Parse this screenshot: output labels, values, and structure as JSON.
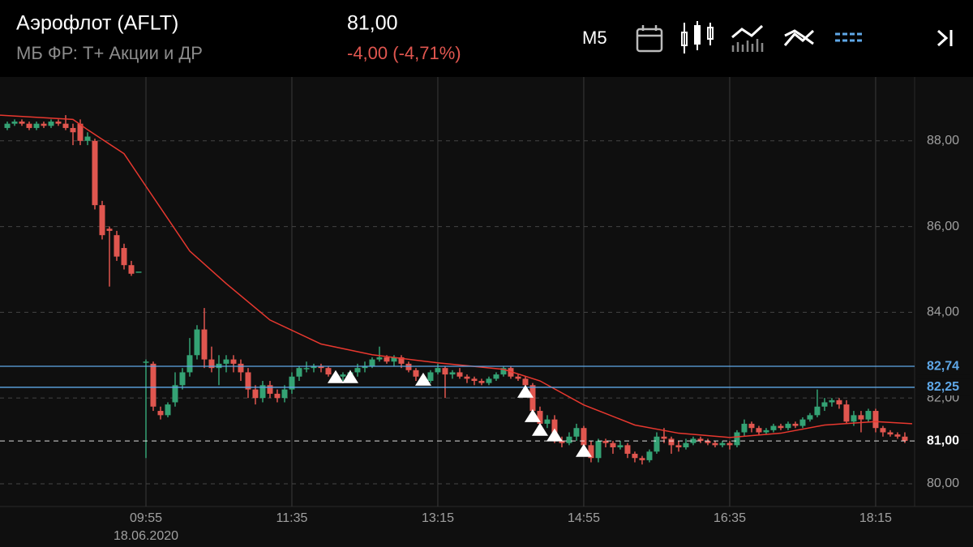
{
  "header": {
    "title": "Аэрофлот (AFLT)",
    "market": "МБ ФР: Т+ Акции и ДР",
    "price": "81,00",
    "change": "-4,00 (-4,71%)",
    "timeframe": "M5"
  },
  "chart_data": {
    "type": "candlestick",
    "up_color": "#34a274",
    "down_color": "#e0564f",
    "x": [
      500,
      505,
      510,
      515,
      520,
      525,
      530,
      535,
      540,
      545,
      550,
      555,
      560,
      565,
      570,
      575,
      580,
      585,
      590,
      595,
      600,
      605,
      610,
      615,
      620,
      625,
      630,
      635,
      640,
      645,
      650,
      655,
      660,
      665,
      670,
      675,
      680,
      685,
      690,
      695,
      700,
      705,
      710,
      715,
      720,
      725,
      730,
      735,
      740,
      745,
      750,
      755,
      760,
      765,
      770,
      775,
      780,
      785,
      790,
      795,
      800,
      805,
      810,
      815,
      820,
      825,
      830,
      835,
      840,
      845,
      850,
      855,
      860,
      865,
      870,
      875,
      880,
      885,
      890,
      895,
      900,
      905,
      910,
      915,
      920,
      925,
      930,
      935,
      940,
      945,
      950,
      955,
      960,
      965,
      970,
      975,
      980,
      985,
      990,
      995,
      1000,
      1005,
      1010,
      1015,
      1020,
      1025,
      1030,
      1035,
      1040,
      1045,
      1050,
      1055,
      1060,
      1065,
      1070,
      1075,
      1080,
      1085,
      1090,
      1095,
      1100,
      1105,
      1110,
      1115
    ],
    "open": [
      88.3,
      88.4,
      88.45,
      88.4,
      88.3,
      88.4,
      88.35,
      88.45,
      88.4,
      88.3,
      88.4,
      88.0,
      88.0,
      86.5,
      85.95,
      85.8,
      85.5,
      85.1,
      84.95,
      82.85,
      82.8,
      81.7,
      81.6,
      81.9,
      82.3,
      82.6,
      83.0,
      83.6,
      82.9,
      82.7,
      82.8,
      82.9,
      82.8,
      82.6,
      82.2,
      82.0,
      82.3,
      82.1,
      82.0,
      82.2,
      82.5,
      82.7,
      82.7,
      82.75,
      82.7,
      82.55,
      82.5,
      82.55,
      82.6,
      82.7,
      82.75,
      82.9,
      82.95,
      82.85,
      82.95,
      82.8,
      82.65,
      82.5,
      82.4,
      82.6,
      82.7,
      82.55,
      82.6,
      82.5,
      82.45,
      82.4,
      82.35,
      82.45,
      82.55,
      82.7,
      82.5,
      82.45,
      82.3,
      81.7,
      81.4,
      81.5,
      81.0,
      80.95,
      81.1,
      81.3,
      80.9,
      80.6,
      81.0,
      80.95,
      80.85,
      80.9,
      80.7,
      80.6,
      80.55,
      80.75,
      81.1,
      81.05,
      80.9,
      80.85,
      80.95,
      81.05,
      81.0,
      80.95,
      80.9,
      80.95,
      80.9,
      81.2,
      81.4,
      81.3,
      81.2,
      81.25,
      81.35,
      81.3,
      81.4,
      81.35,
      81.5,
      81.6,
      81.8,
      81.9,
      81.95,
      81.85,
      81.45,
      81.6,
      81.5,
      81.7,
      81.3,
      81.2,
      81.15,
      81.1
    ],
    "high": [
      88.45,
      88.5,
      88.5,
      88.45,
      88.45,
      88.45,
      88.5,
      88.5,
      88.6,
      88.4,
      88.5,
      88.2,
      88.05,
      86.6,
      86.0,
      85.9,
      85.6,
      85.2,
      84.95,
      82.9,
      82.85,
      81.8,
      81.9,
      82.6,
      82.7,
      83.4,
      83.7,
      84.1,
      83.2,
      83.0,
      83.0,
      83.0,
      82.9,
      82.7,
      82.3,
      82.4,
      82.4,
      82.2,
      82.3,
      82.6,
      82.75,
      82.85,
      82.8,
      82.8,
      82.75,
      82.6,
      82.6,
      82.65,
      82.8,
      82.85,
      82.95,
      83.2,
      83.0,
      83.0,
      83.0,
      82.85,
      82.7,
      82.55,
      82.65,
      82.8,
      82.75,
      82.65,
      82.7,
      82.55,
      82.5,
      82.45,
      82.5,
      82.6,
      82.75,
      82.75,
      82.55,
      82.5,
      82.35,
      81.8,
      81.6,
      81.6,
      81.1,
      81.2,
      81.4,
      81.35,
      81.0,
      81.05,
      81.05,
      81.0,
      81.0,
      80.95,
      80.75,
      80.65,
      80.8,
      81.2,
      81.3,
      81.1,
      81.0,
      81.05,
      81.1,
      81.1,
      81.05,
      81.0,
      81.0,
      81.0,
      81.25,
      81.5,
      81.45,
      81.35,
      81.3,
      81.4,
      81.4,
      81.45,
      81.45,
      81.55,
      81.65,
      82.2,
      82.0,
      82.0,
      82.0,
      81.95,
      81.7,
      81.7,
      81.75,
      81.75,
      81.35,
      81.25,
      81.2,
      81.2
    ],
    "low": [
      88.25,
      88.35,
      88.35,
      88.25,
      88.25,
      88.3,
      88.3,
      88.35,
      88.25,
      87.9,
      87.9,
      87.9,
      86.4,
      85.7,
      84.6,
      85.2,
      85.0,
      84.85,
      84.95,
      80.6,
      81.7,
      81.5,
      81.55,
      81.8,
      82.2,
      82.5,
      82.9,
      82.7,
      82.6,
      82.3,
      82.6,
      82.6,
      82.4,
      82.0,
      81.85,
      81.9,
      82.0,
      81.9,
      81.9,
      82.1,
      82.4,
      82.6,
      82.6,
      82.6,
      82.5,
      82.45,
      82.4,
      82.5,
      82.5,
      82.6,
      82.7,
      82.85,
      82.8,
      82.75,
      82.7,
      82.6,
      82.4,
      82.3,
      82.35,
      82.55,
      82.0,
      82.45,
      82.45,
      82.35,
      82.3,
      82.3,
      82.3,
      82.4,
      82.5,
      82.45,
      82.4,
      82.2,
      81.6,
      81.3,
      81.3,
      80.95,
      80.85,
      80.9,
      81.0,
      80.8,
      80.5,
      80.5,
      80.85,
      80.7,
      80.8,
      80.6,
      80.5,
      80.45,
      80.5,
      80.7,
      80.95,
      80.7,
      80.75,
      80.8,
      80.9,
      80.95,
      80.9,
      80.85,
      80.85,
      80.8,
      80.85,
      81.1,
      81.2,
      81.15,
      81.15,
      81.2,
      81.25,
      81.25,
      81.3,
      81.3,
      81.45,
      81.55,
      81.7,
      81.8,
      81.75,
      81.4,
      81.35,
      81.2,
      81.45,
      81.2,
      81.1,
      81.1,
      81.05,
      80.95
    ],
    "close": [
      88.4,
      88.45,
      88.4,
      88.3,
      88.4,
      88.35,
      88.45,
      88.4,
      88.3,
      88.2,
      88.0,
      88.1,
      86.5,
      85.8,
      85.9,
      85.3,
      85.1,
      84.9,
      84.95,
      82.85,
      81.8,
      81.6,
      81.85,
      82.3,
      82.6,
      83.0,
      83.6,
      82.9,
      82.7,
      82.8,
      82.9,
      82.8,
      82.6,
      82.2,
      82.0,
      82.3,
      82.1,
      82.0,
      82.2,
      82.5,
      82.7,
      82.7,
      82.75,
      82.7,
      82.55,
      82.5,
      82.55,
      82.6,
      82.7,
      82.75,
      82.9,
      82.95,
      82.85,
      82.95,
      82.8,
      82.65,
      82.5,
      82.4,
      82.6,
      82.7,
      82.55,
      82.6,
      82.5,
      82.45,
      82.4,
      82.35,
      82.45,
      82.55,
      82.7,
      82.5,
      82.45,
      82.3,
      81.7,
      81.4,
      81.5,
      81.0,
      80.95,
      81.1,
      81.3,
      80.9,
      80.6,
      81.0,
      80.95,
      80.85,
      80.9,
      80.7,
      80.6,
      80.55,
      80.75,
      81.1,
      81.05,
      80.9,
      80.85,
      80.95,
      81.05,
      81.0,
      80.95,
      80.9,
      80.95,
      80.9,
      81.2,
      81.4,
      81.3,
      81.2,
      81.25,
      81.35,
      81.3,
      81.4,
      81.35,
      81.5,
      81.6,
      81.8,
      81.9,
      81.95,
      81.85,
      81.45,
      81.6,
      81.5,
      81.7,
      81.3,
      81.2,
      81.15,
      81.1,
      81.0
    ],
    "moving_average": {
      "color": "#e8382f",
      "x": [
        495,
        545,
        555,
        580,
        595,
        625,
        650,
        680,
        715,
        750,
        795,
        840,
        865,
        895,
        930,
        960,
        995,
        1030,
        1060,
        1095,
        1120
      ],
      "values": [
        88.6,
        88.5,
        88.26,
        87.7,
        86.94,
        85.43,
        84.67,
        83.82,
        83.26,
        83.01,
        82.82,
        82.67,
        82.4,
        81.84,
        81.37,
        81.18,
        81.08,
        81.18,
        81.37,
        81.45,
        81.4
      ]
    },
    "markers": {
      "color": "#ffffff",
      "x": [
        725,
        735,
        785,
        855,
        860,
        865,
        875,
        895
      ],
      "values": [
        82.5,
        82.5,
        82.44,
        82.16,
        81.59,
        81.27,
        81.14,
        80.78
      ]
    },
    "levels": [
      {
        "value": 82.74,
        "label": "82,74",
        "color": "#5fa8e8"
      },
      {
        "value": 82.25,
        "label": "82,25",
        "color": "#5fa8e8"
      },
      {
        "value": 81.0,
        "label": "81,00",
        "color": "#ffffff"
      }
    ],
    "xlim": [
      495,
      1121.7
    ],
    "xticks": [
      {
        "value": 595,
        "label": "09:55"
      },
      {
        "value": 695,
        "label": "11:35"
      },
      {
        "value": 795,
        "label": "13:15"
      },
      {
        "value": 895,
        "label": "14:55"
      },
      {
        "value": 995,
        "label": "16:35"
      },
      {
        "value": 1095,
        "label": "18:15"
      }
    ],
    "date_label": "18.06.2020",
    "ylim": [
      79.47,
      89.49
    ],
    "yticks": [
      {
        "value": 80,
        "label": "80,00"
      },
      {
        "value": 82,
        "label": "82,00"
      },
      {
        "value": 84,
        "label": "84,00"
      },
      {
        "value": 86,
        "label": "86,00"
      },
      {
        "value": 88,
        "label": "88,00"
      }
    ]
  }
}
